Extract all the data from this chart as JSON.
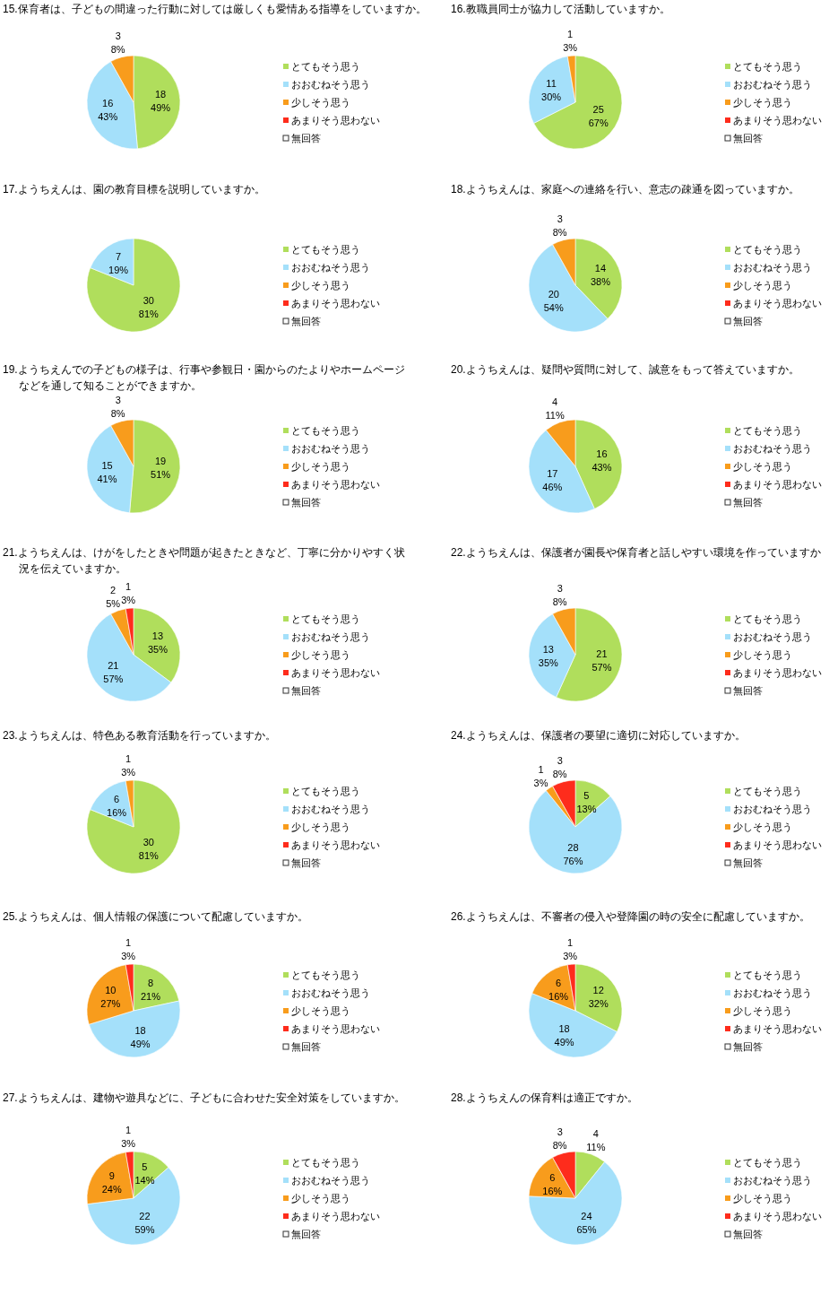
{
  "chart_data": [
    {
      "type": "pie",
      "title": "15.保育者は、子どもの間違った行動に対しては厳しくも愛情ある指導をしていますか。",
      "categories": [
        "とてもそう思う",
        "おおむねそう思う",
        "少しそう思う",
        "あまりそう思わない",
        "無回答"
      ],
      "values": [
        18,
        16,
        3,
        0,
        0
      ],
      "colors": [
        "#b0de5c",
        "#a4e0fa",
        "#f89c1c",
        "#fe2c1c",
        "#ffffff"
      ],
      "value_labels": [
        "18\n49%",
        "16\n43%",
        "3\n8%",
        null,
        null
      ],
      "legend": "right"
    },
    {
      "type": "pie",
      "title": "16.教職員同士が協力して活動していますか。",
      "categories": [
        "とてもそう思う",
        "おおむねそう思う",
        "少しそう思う",
        "あまりそう思わない",
        "無回答"
      ],
      "values": [
        25,
        11,
        1,
        0,
        0
      ],
      "colors": [
        "#b0de5c",
        "#a4e0fa",
        "#f89c1c",
        "#fe2c1c",
        "#ffffff"
      ],
      "value_labels": [
        "25\n67%",
        "11\n30%",
        "1\n3%",
        null,
        null
      ],
      "legend": "right"
    },
    {
      "type": "pie",
      "title": "17.ようちえんは、園の教育目標を説明していますか。",
      "categories": [
        "とてもそう思う",
        "おおむねそう思う",
        "少しそう思う",
        "あまりそう思わない",
        "無回答"
      ],
      "values": [
        30,
        7,
        0,
        0,
        0
      ],
      "colors": [
        "#b0de5c",
        "#a4e0fa",
        "#f89c1c",
        "#fe2c1c",
        "#ffffff"
      ],
      "value_labels": [
        "30\n81%",
        "7\n19%",
        null,
        null,
        null
      ],
      "legend": "right"
    },
    {
      "type": "pie",
      "title": "18.ようちえんは、家庭への連絡を行い、意志の疎通を図っていますか。",
      "categories": [
        "とてもそう思う",
        "おおむねそう思う",
        "少しそう思う",
        "あまりそう思わない",
        "無回答"
      ],
      "values": [
        14,
        20,
        3,
        0,
        0
      ],
      "colors": [
        "#b0de5c",
        "#a4e0fa",
        "#f89c1c",
        "#fe2c1c",
        "#ffffff"
      ],
      "value_labels": [
        "14\n38%",
        "20\n54%",
        "3\n8%",
        null,
        null
      ],
      "legend": "right"
    },
    {
      "type": "pie",
      "title": "19.ようちえんでの子どもの様子は、行事や参観日・園からのたよりやホームページなどを通して知ることができますか。",
      "categories": [
        "とてもそう思う",
        "おおむねそう思う",
        "少しそう思う",
        "あまりそう思わない",
        "無回答"
      ],
      "values": [
        19,
        15,
        3,
        0,
        0
      ],
      "colors": [
        "#b0de5c",
        "#a4e0fa",
        "#f89c1c",
        "#fe2c1c",
        "#ffffff"
      ],
      "value_labels": [
        "19\n51%",
        "15\n41%",
        "3\n8%",
        null,
        null
      ],
      "legend": "right"
    },
    {
      "type": "pie",
      "title": "20.ようちえんは、疑問や質問に対して、誠意をもって答えていますか。",
      "categories": [
        "とてもそう思う",
        "おおむねそう思う",
        "少しそう思う",
        "あまりそう思わない",
        "無回答"
      ],
      "values": [
        16,
        17,
        4,
        0,
        0
      ],
      "colors": [
        "#b0de5c",
        "#a4e0fa",
        "#f89c1c",
        "#fe2c1c",
        "#ffffff"
      ],
      "value_labels": [
        "16\n43%",
        "17\n46%",
        "4\n11%",
        null,
        null
      ],
      "legend": "right"
    },
    {
      "type": "pie",
      "title": "21.ようちえんは、けがをしたときや問題が起きたときなど、丁寧に分かりやすく状況を伝えていますか。",
      "categories": [
        "とてもそう思う",
        "おおむねそう思う",
        "少しそう思う",
        "あまりそう思わない",
        "無回答"
      ],
      "values": [
        13,
        21,
        2,
        1,
        0
      ],
      "colors": [
        "#b0de5c",
        "#a4e0fa",
        "#f89c1c",
        "#fe2c1c",
        "#ffffff"
      ],
      "value_labels": [
        "13\n35%",
        "21\n57%",
        "2\n5%",
        "1\n3%",
        null
      ],
      "legend": "right"
    },
    {
      "type": "pie",
      "title": "22.ようちえんは、保護者が園長や保育者と話しやすい環境を作っていますか",
      "categories": [
        "とてもそう思う",
        "おおむねそう思う",
        "少しそう思う",
        "あまりそう思わない",
        "無回答"
      ],
      "values": [
        21,
        13,
        3,
        0,
        0
      ],
      "colors": [
        "#b0de5c",
        "#a4e0fa",
        "#f89c1c",
        "#fe2c1c",
        "#ffffff"
      ],
      "value_labels": [
        "21\n57%",
        "13\n35%",
        "3\n8%",
        null,
        null
      ],
      "legend": "right"
    },
    {
      "type": "pie",
      "title": "23.ようちえんは、特色ある教育活動を行っていますか。",
      "categories": [
        "とてもそう思う",
        "おおむねそう思う",
        "少しそう思う",
        "あまりそう思わない",
        "無回答"
      ],
      "values": [
        30,
        6,
        1,
        0,
        0
      ],
      "colors": [
        "#b0de5c",
        "#a4e0fa",
        "#f89c1c",
        "#fe2c1c",
        "#ffffff"
      ],
      "value_labels": [
        "30\n81%",
        "6\n16%",
        "1\n3%",
        null,
        null
      ],
      "legend": "right"
    },
    {
      "type": "pie",
      "title": "24.ようちえんは、保護者の要望に適切に対応していますか。",
      "categories": [
        "とてもそう思う",
        "おおむねそう思う",
        "少しそう思う",
        "あまりそう思わない",
        "無回答"
      ],
      "values": [
        5,
        28,
        1,
        3,
        0
      ],
      "colors": [
        "#b0de5c",
        "#a4e0fa",
        "#f89c1c",
        "#fe2c1c",
        "#ffffff"
      ],
      "value_labels": [
        "5\n13%",
        "28\n76%",
        "1\n3%",
        "3\n8%",
        null
      ],
      "legend": "right"
    },
    {
      "type": "pie",
      "title": "25.ようちえんは、個人情報の保護について配慮していますか。",
      "categories": [
        "とてもそう思う",
        "おおむねそう思う",
        "少しそう思う",
        "あまりそう思わない",
        "無回答"
      ],
      "values": [
        8,
        18,
        10,
        1,
        0
      ],
      "colors": [
        "#b0de5c",
        "#a4e0fa",
        "#f89c1c",
        "#fe2c1c",
        "#ffffff"
      ],
      "value_labels": [
        "8\n21%",
        "18\n49%",
        "10\n27%",
        "1\n3%",
        null
      ],
      "legend": "right"
    },
    {
      "type": "pie",
      "title": "26.ようちえんは、不審者の侵入や登降園の時の安全に配慮していますか。",
      "categories": [
        "とてもそう思う",
        "おおむねそう思う",
        "少しそう思う",
        "あまりそう思わない",
        "無回答"
      ],
      "values": [
        12,
        18,
        6,
        1,
        0
      ],
      "colors": [
        "#b0de5c",
        "#a4e0fa",
        "#f89c1c",
        "#fe2c1c",
        "#ffffff"
      ],
      "value_labels": [
        "12\n32%",
        "18\n49%",
        "6\n16%",
        "1\n3%",
        null
      ],
      "legend": "right"
    },
    {
      "type": "pie",
      "title": "27.ようちえんは、建物や遊具などに、子どもに合わせた安全対策をしていますか。",
      "categories": [
        "とてもそう思う",
        "おおむねそう思う",
        "少しそう思う",
        "あまりそう思わない",
        "無回答"
      ],
      "values": [
        5,
        22,
        9,
        1,
        0
      ],
      "colors": [
        "#b0de5c",
        "#a4e0fa",
        "#f89c1c",
        "#fe2c1c",
        "#ffffff"
      ],
      "value_labels": [
        "5\n14%",
        "22\n59%",
        "9\n24%",
        "1\n3%",
        null
      ],
      "legend": "right"
    },
    {
      "type": "pie",
      "title": "28.ようちえんの保育料は適正ですか。",
      "categories": [
        "とてもそう思う",
        "おおむねそう思う",
        "少しそう思う",
        "あまりそう思わない",
        "無回答"
      ],
      "values": [
        4,
        24,
        6,
        3,
        0
      ],
      "colors": [
        "#b0de5c",
        "#a4e0fa",
        "#f89c1c",
        "#fe2c1c",
        "#ffffff"
      ],
      "value_labels": [
        "4\n11%",
        "24\n65%",
        "6\n16%",
        "3\n8%",
        null
      ],
      "legend": "right"
    }
  ]
}
